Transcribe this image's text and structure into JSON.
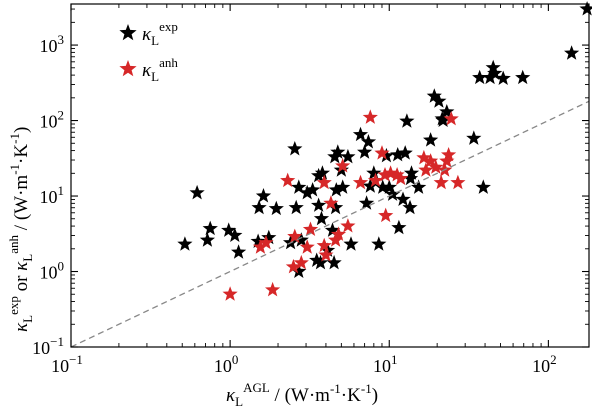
{
  "chart_data": {
    "type": "scatter",
    "xscale": "log",
    "yscale": "log",
    "xlim": [
      0.1,
      180
    ],
    "ylim": [
      0.1,
      3500
    ],
    "grid": false,
    "legend_position": "top-left",
    "x_ticks": [
      {
        "value": 0.1,
        "base": "10",
        "exp": "−1"
      },
      {
        "value": 1,
        "base": "10",
        "exp": "0"
      },
      {
        "value": 10,
        "base": "10",
        "exp": "1"
      },
      {
        "value": 100,
        "base": "10",
        "exp": "2"
      }
    ],
    "y_ticks": [
      {
        "value": 0.1,
        "base": "10",
        "exp": "−1"
      },
      {
        "value": 1,
        "base": "10",
        "exp": "0"
      },
      {
        "value": 10,
        "base": "10",
        "exp": "1"
      },
      {
        "value": 100,
        "base": "10",
        "exp": "2"
      },
      {
        "value": 1000,
        "base": "10",
        "exp": "3"
      }
    ],
    "xlabel": {
      "sym": "κ",
      "sub": "L",
      "sup": "AGL",
      "units": " / (W·m",
      "u1": "-1",
      "mid": "·K",
      "u2": "-1",
      "end": ")"
    },
    "ylabel": {
      "sym": "κ",
      "sub": "L",
      "sup": "exp",
      "or": " or ",
      "sym2": "κ",
      "sub2": "L",
      "sup2": "anh",
      "units": " / (W·m",
      "u1": "-1",
      "mid": "·K",
      "u2": "-1",
      "end": ")"
    },
    "reference_line": {
      "style": "dashed",
      "color": "#888888",
      "relation": "y = x"
    },
    "series": [
      {
        "name": "κ_L^exp",
        "label": {
          "sym": "κ",
          "sub": "L",
          "sup": "exp"
        },
        "color": "#000000",
        "marker": "star",
        "points": [
          [
            0.52,
            2.3
          ],
          [
            0.62,
            11
          ],
          [
            0.72,
            2.6
          ],
          [
            0.75,
            3.7
          ],
          [
            0.98,
            3.5
          ],
          [
            1.07,
            3.0
          ],
          [
            1.13,
            1.8
          ],
          [
            1.5,
            2.5
          ],
          [
            1.52,
            7.0
          ],
          [
            1.62,
            10
          ],
          [
            1.75,
            2.8
          ],
          [
            1.95,
            6.8
          ],
          [
            2.4,
            2.4
          ],
          [
            2.55,
            42
          ],
          [
            2.6,
            7.0
          ],
          [
            2.7,
            1.0
          ],
          [
            2.7,
            13
          ],
          [
            2.8,
            2.6
          ],
          [
            3.05,
            11
          ],
          [
            3.3,
            12
          ],
          [
            3.5,
            1.4
          ],
          [
            3.6,
            7.5
          ],
          [
            3.6,
            18.5
          ],
          [
            3.7,
            1.3
          ],
          [
            3.75,
            5
          ],
          [
            3.8,
            20
          ],
          [
            4.1,
            1.9
          ],
          [
            4.4,
            3.5
          ],
          [
            4.5,
            1.3
          ],
          [
            4.55,
            33
          ],
          [
            4.6,
            7
          ],
          [
            4.65,
            12
          ],
          [
            4.75,
            38
          ],
          [
            5.0,
            22
          ],
          [
            5.1,
            13
          ],
          [
            5.5,
            33
          ],
          [
            5.75,
            2.3
          ],
          [
            6.6,
            65
          ],
          [
            7.0,
            38
          ],
          [
            7.2,
            8
          ],
          [
            7.4,
            52
          ],
          [
            7.6,
            13.5
          ],
          [
            8.0,
            20
          ],
          [
            8.6,
            2.3
          ],
          [
            9.1,
            13
          ],
          [
            9.6,
            34
          ],
          [
            10,
            13
          ],
          [
            10.5,
            10.5
          ],
          [
            11.3,
            35
          ],
          [
            11.5,
            3.8
          ],
          [
            12.2,
            9
          ],
          [
            12.6,
            37
          ],
          [
            12.9,
            98
          ],
          [
            13.5,
            7
          ],
          [
            13.8,
            20
          ],
          [
            13.6,
            17
          ],
          [
            15.3,
            13
          ],
          [
            18.2,
            55
          ],
          [
            19.2,
            210
          ],
          [
            20.5,
            180
          ],
          [
            21.5,
            105
          ],
          [
            21.8,
            100
          ],
          [
            23,
            130
          ],
          [
            34,
            58
          ],
          [
            37,
            370
          ],
          [
            39,
            13
          ],
          [
            43,
            370
          ],
          [
            45,
            500
          ],
          [
            46,
            420
          ],
          [
            52,
            360
          ],
          [
            69,
            370
          ],
          [
            140,
            780
          ],
          [
            175,
            3000
          ]
        ]
      },
      {
        "name": "κ_L^anh",
        "label": {
          "sym": "κ",
          "sub": "L",
          "sup": "anh"
        },
        "color": "#d62728",
        "marker": "star",
        "points": [
          [
            1.0,
            0.5
          ],
          [
            1.55,
            2.1
          ],
          [
            1.68,
            2.4
          ],
          [
            1.85,
            0.57
          ],
          [
            2.3,
            16
          ],
          [
            2.5,
            1.15
          ],
          [
            2.55,
            2.9
          ],
          [
            2.8,
            1.3
          ],
          [
            3.05,
            2.1
          ],
          [
            3.2,
            3.6
          ],
          [
            3.9,
            2.2
          ],
          [
            3.9,
            15
          ],
          [
            4.0,
            1.65
          ],
          [
            4.3,
            8
          ],
          [
            4.6,
            2.6
          ],
          [
            4.8,
            3.1
          ],
          [
            5.1,
            25
          ],
          [
            5.5,
            4.0
          ],
          [
            6.6,
            15
          ],
          [
            7.6,
            110
          ],
          [
            8.2,
            16
          ],
          [
            9.0,
            37
          ],
          [
            9.4,
            19
          ],
          [
            9.5,
            5.5
          ],
          [
            10.2,
            20
          ],
          [
            11.2,
            19
          ],
          [
            11.8,
            17
          ],
          [
            16.5,
            32
          ],
          [
            17,
            22
          ],
          [
            18.2,
            29
          ],
          [
            19.6,
            24
          ],
          [
            21.2,
            15
          ],
          [
            22.3,
            22
          ],
          [
            23,
            29
          ],
          [
            23.6,
            35
          ],
          [
            24.5,
            105
          ],
          [
            27,
            15
          ]
        ]
      }
    ]
  }
}
